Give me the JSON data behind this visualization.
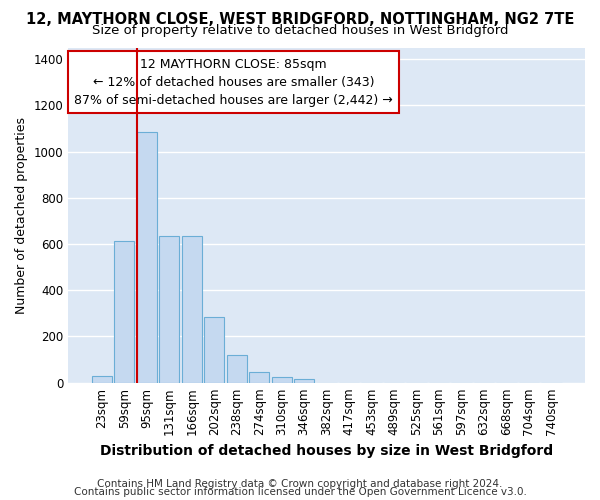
{
  "title": "12, MAYTHORN CLOSE, WEST BRIDGFORD, NOTTINGHAM, NG2 7TE",
  "subtitle": "Size of property relative to detached houses in West Bridgford",
  "xlabel": "Distribution of detached houses by size in West Bridgford",
  "ylabel": "Number of detached properties",
  "categories": [
    "23sqm",
    "59sqm",
    "95sqm",
    "131sqm",
    "166sqm",
    "202sqm",
    "238sqm",
    "274sqm",
    "310sqm",
    "346sqm",
    "382sqm",
    "417sqm",
    "453sqm",
    "489sqm",
    "525sqm",
    "561sqm",
    "597sqm",
    "632sqm",
    "668sqm",
    "704sqm",
    "740sqm"
  ],
  "values": [
    30,
    615,
    1085,
    635,
    635,
    285,
    120,
    45,
    25,
    15,
    0,
    0,
    0,
    0,
    0,
    0,
    0,
    0,
    0,
    0,
    0
  ],
  "bar_color": "#c5d9f0",
  "bar_edge_color": "#6baed6",
  "vline_color": "#cc0000",
  "annotation_line1": "12 MAYTHORN CLOSE: 85sqm",
  "annotation_line2": "← 12% of detached houses are smaller (343)",
  "annotation_line3": "87% of semi-detached houses are larger (2,442) →",
  "annotation_box_color": "#ffffff",
  "annotation_box_edge_color": "#cc0000",
  "ylim": [
    0,
    1450
  ],
  "yticks": [
    0,
    200,
    400,
    600,
    800,
    1000,
    1200,
    1400
  ],
  "footnote1": "Contains HM Land Registry data © Crown copyright and database right 2024.",
  "footnote2": "Contains public sector information licensed under the Open Government Licence v3.0.",
  "bg_color": "#dde8f5",
  "fig_bg_color": "#ffffff",
  "grid_color": "#ffffff",
  "title_fontsize": 10.5,
  "subtitle_fontsize": 9.5,
  "xlabel_fontsize": 10,
  "ylabel_fontsize": 9,
  "tick_fontsize": 8.5,
  "annotation_fontsize": 9,
  "footnote_fontsize": 7.5
}
